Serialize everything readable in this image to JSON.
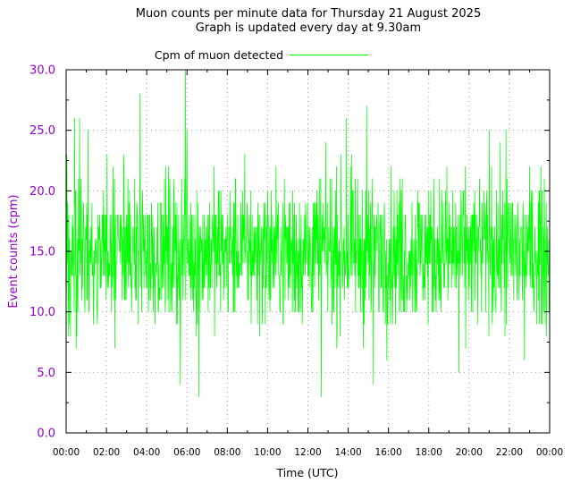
{
  "chart_data": {
    "type": "line",
    "title_line1": "Muon counts per minute data for Thursday 21 August 2025",
    "title_line2": "Graph is updated every day at 9.30am",
    "xlabel": "Time (UTC)",
    "ylabel": "Event counts (cpm)",
    "xlim": [
      "00:00",
      "24:00"
    ],
    "ylim": [
      0,
      30
    ],
    "grid": true,
    "legend_position": "top",
    "x_ticks": [
      "00:00",
      "02:00",
      "04:00",
      "06:00",
      "08:00",
      "10:00",
      "12:00",
      "14:00",
      "16:00",
      "18:00",
      "20:00",
      "22:00",
      "00:00"
    ],
    "y_ticks": [
      "0.0",
      "5.0",
      "10.0",
      "15.0",
      "20.0",
      "25.0",
      "30.0"
    ],
    "series": [
      {
        "name": "Cpm of muon detected",
        "color": "#00ff00",
        "sampling": "one value per minute, 00:00 to 23:59 UTC",
        "summary": {
          "mean": 15,
          "min": 3,
          "max": 30
        },
        "notable_values": [
          {
            "time": "00:02",
            "value": 23
          },
          {
            "time": "00:25",
            "value": 26
          },
          {
            "time": "00:40",
            "value": 26
          },
          {
            "time": "01:05",
            "value": 25
          },
          {
            "time": "03:40",
            "value": 28
          },
          {
            "time": "05:40",
            "value": 4
          },
          {
            "time": "05:55",
            "value": 30
          },
          {
            "time": "06:00",
            "value": 25
          },
          {
            "time": "06:35",
            "value": 3
          },
          {
            "time": "12:40",
            "value": 3
          },
          {
            "time": "13:55",
            "value": 26
          },
          {
            "time": "14:55",
            "value": 27
          },
          {
            "time": "15:15",
            "value": 4
          },
          {
            "time": "19:30",
            "value": 5
          },
          {
            "time": "21:00",
            "value": 25
          },
          {
            "time": "21:50",
            "value": 25
          },
          {
            "time": "22:45",
            "value": 6
          }
        ]
      }
    ]
  }
}
